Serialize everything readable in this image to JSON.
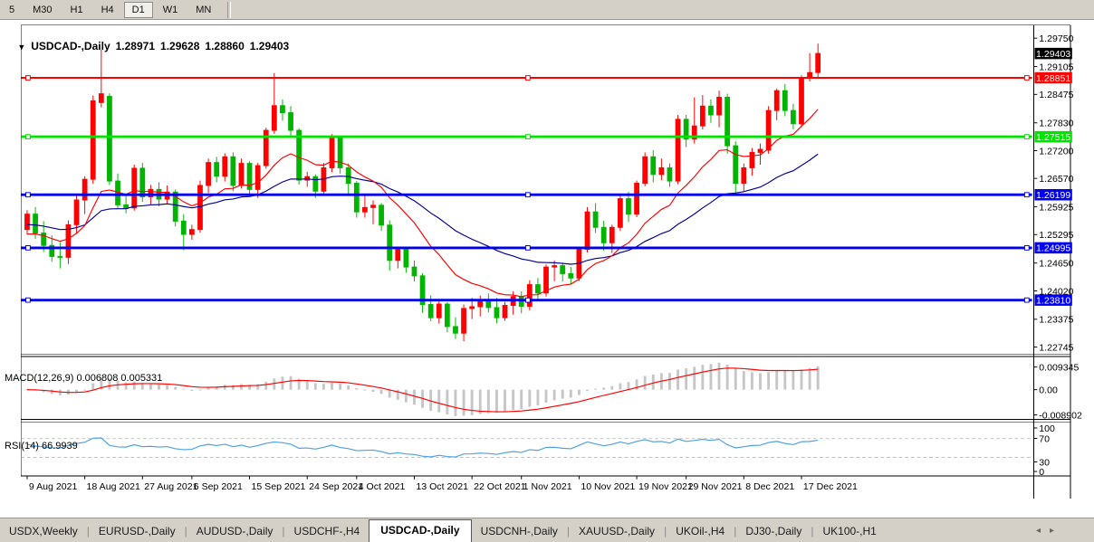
{
  "toolbar": {
    "buttons": [
      {
        "label": "5",
        "active": false
      },
      {
        "label": "M30",
        "active": false
      },
      {
        "label": "H1",
        "active": false
      },
      {
        "label": "H4",
        "active": false
      },
      {
        "label": "D1",
        "active": true
      },
      {
        "label": "W1",
        "active": false
      },
      {
        "label": "MN",
        "active": false
      }
    ]
  },
  "main_chart": {
    "symbol_arrow": "▼",
    "title": "USDCAD-,Daily",
    "open": "1.28971",
    "high": "1.29628",
    "low": "1.28860",
    "close": "1.29403"
  },
  "indicators": {
    "macd_label": "MACD(12,26,9) 0.006808 0.005331",
    "rsi_label": "RSI(14) 66.9939"
  },
  "chart_data": {
    "type": "candlestick",
    "symbol": "USDCAD-",
    "timeframe": "Daily",
    "last_bar": {
      "open": 1.28971,
      "high": 1.29628,
      "low": 1.2886,
      "close": 1.29403
    },
    "price_ticks": [
      "1.29750",
      "1.29105",
      "1.28475",
      "1.27830",
      "1.27200",
      "1.26570",
      "1.25925",
      "1.25295",
      "1.24650",
      "1.24020",
      "1.23375",
      "1.22745"
    ],
    "current_price": {
      "value": 1.29403,
      "label": "1.29403",
      "bg": "#000000",
      "fg": "#ffffff"
    },
    "hlines": [
      {
        "price": 1.28851,
        "label": "1.28851",
        "color": "#fe0000",
        "width": 2
      },
      {
        "price": 1.27515,
        "label": "1.27515",
        "color": "#00e400",
        "width": 3
      },
      {
        "price": 1.26199,
        "label": "1.26199",
        "color": "#0000ee",
        "width": 3
      },
      {
        "price": 1.24995,
        "label": "1.24995",
        "color": "#0000ee",
        "width": 3
      },
      {
        "price": 1.2381,
        "label": "1.23810",
        "color": "#0000ee",
        "width": 3
      }
    ],
    "date_labels": [
      {
        "i": 0,
        "label": "9 Aug 2021"
      },
      {
        "i": 7,
        "label": "18 Aug 2021"
      },
      {
        "i": 14,
        "label": "27 Aug 2021"
      },
      {
        "i": 20,
        "label": "6 Sep 2021"
      },
      {
        "i": 27,
        "label": "15 Sep 2021"
      },
      {
        "i": 34,
        "label": "24 Sep 2021"
      },
      {
        "i": 40,
        "label": "4 Oct 2021"
      },
      {
        "i": 47,
        "label": "13 Oct 2021"
      },
      {
        "i": 54,
        "label": "22 Oct 2021"
      },
      {
        "i": 60,
        "label": "1 Nov 2021"
      },
      {
        "i": 67,
        "label": "10 Nov 2021"
      },
      {
        "i": 74,
        "label": "19 Nov 2021"
      },
      {
        "i": 80,
        "label": "29 Nov 2021"
      },
      {
        "i": 87,
        "label": "8 Dec 2021"
      },
      {
        "i": 94,
        "label": "17 Dec 2021"
      }
    ],
    "candles": [
      [
        1.2541,
        1.2585,
        1.253,
        1.2576
      ],
      [
        1.2576,
        1.2592,
        1.252,
        1.2533
      ],
      [
        1.2533,
        1.256,
        1.249,
        1.2505
      ],
      [
        1.2505,
        1.2528,
        1.2468,
        1.248
      ],
      [
        1.248,
        1.2512,
        1.2453,
        1.2478
      ],
      [
        1.2478,
        1.2562,
        1.2463,
        1.2552
      ],
      [
        1.2552,
        1.2622,
        1.2532,
        1.2608
      ],
      [
        1.2608,
        1.2662,
        1.2576,
        1.2655
      ],
      [
        1.2655,
        1.2845,
        1.2645,
        1.2833
      ],
      [
        1.2829,
        1.2949,
        1.2818,
        1.2849
      ],
      [
        1.2843,
        1.285,
        1.2642,
        1.2651
      ],
      [
        1.2651,
        1.2668,
        1.2588,
        1.2597
      ],
      [
        1.2597,
        1.2622,
        1.2578,
        1.259
      ],
      [
        1.259,
        1.2688,
        1.2584,
        1.268
      ],
      [
        1.268,
        1.2692,
        1.2604,
        1.2615
      ],
      [
        1.2615,
        1.2642,
        1.2598,
        1.2632
      ],
      [
        1.2632,
        1.2648,
        1.2594,
        1.261
      ],
      [
        1.261,
        1.2641,
        1.2599,
        1.2626
      ],
      [
        1.2626,
        1.2632,
        1.2548,
        1.256
      ],
      [
        1.256,
        1.2576,
        1.2494,
        1.253
      ],
      [
        1.253,
        1.2552,
        1.2518,
        1.2541
      ],
      [
        1.2541,
        1.2652,
        1.2534,
        1.2641
      ],
      [
        1.2641,
        1.2702,
        1.2624,
        1.2693
      ],
      [
        1.2693,
        1.2706,
        1.2648,
        1.2662
      ],
      [
        1.2662,
        1.2714,
        1.265,
        1.2706
      ],
      [
        1.2706,
        1.2716,
        1.2628,
        1.2641
      ],
      [
        1.2641,
        1.2702,
        1.2634,
        1.2691
      ],
      [
        1.2691,
        1.2696,
        1.2618,
        1.2632
      ],
      [
        1.2632,
        1.2692,
        1.2613,
        1.2686
      ],
      [
        1.2686,
        1.2772,
        1.2679,
        1.2766
      ],
      [
        1.2766,
        1.2896,
        1.2758,
        1.2822
      ],
      [
        1.2822,
        1.2836,
        1.2788,
        1.2806
      ],
      [
        1.2806,
        1.2821,
        1.2752,
        1.2766
      ],
      [
        1.2766,
        1.2771,
        1.2643,
        1.2653
      ],
      [
        1.2653,
        1.2672,
        1.2638,
        1.2661
      ],
      [
        1.2661,
        1.2666,
        1.2613,
        1.2628
      ],
      [
        1.2628,
        1.2692,
        1.2619,
        1.2681
      ],
      [
        1.2681,
        1.2757,
        1.2671,
        1.2749
      ],
      [
        1.2749,
        1.2754,
        1.2668,
        1.2681
      ],
      [
        1.2681,
        1.2691,
        1.2618,
        1.2646
      ],
      [
        1.2646,
        1.2651,
        1.2568,
        1.2581
      ],
      [
        1.2581,
        1.2622,
        1.2568,
        1.2591
      ],
      [
        1.2591,
        1.2607,
        1.2553,
        1.2596
      ],
      [
        1.2596,
        1.2601,
        1.2538,
        1.2551
      ],
      [
        1.2551,
        1.2562,
        1.2448,
        1.2471
      ],
      [
        1.2471,
        1.2502,
        1.2453,
        1.2496
      ],
      [
        1.2496,
        1.2501,
        1.2443,
        1.2456
      ],
      [
        1.2456,
        1.2471,
        1.2423,
        1.2436
      ],
      [
        1.2436,
        1.2442,
        1.2352,
        1.2371
      ],
      [
        1.2371,
        1.2392,
        1.2333,
        1.2341
      ],
      [
        1.2341,
        1.2379,
        1.2328,
        1.2372
      ],
      [
        1.2372,
        1.2376,
        1.2308,
        1.2321
      ],
      [
        1.2321,
        1.2342,
        1.2293,
        1.2306
      ],
      [
        1.2306,
        1.2371,
        1.2288,
        1.2362
      ],
      [
        1.2362,
        1.2386,
        1.2338,
        1.2366
      ],
      [
        1.2366,
        1.2391,
        1.2344,
        1.2381
      ],
      [
        1.2381,
        1.2396,
        1.2353,
        1.2364
      ],
      [
        1.2364,
        1.2386,
        1.2328,
        1.2341
      ],
      [
        1.2341,
        1.2377,
        1.2334,
        1.2369
      ],
      [
        1.2369,
        1.2401,
        1.2348,
        1.2389
      ],
      [
        1.2389,
        1.2401,
        1.2351,
        1.2367
      ],
      [
        1.2367,
        1.2426,
        1.2358,
        1.2416
      ],
      [
        1.2416,
        1.2431,
        1.2383,
        1.2397
      ],
      [
        1.2397,
        1.2462,
        1.2389,
        1.2456
      ],
      [
        1.2456,
        1.2471,
        1.2424,
        1.2459
      ],
      [
        1.2459,
        1.2466,
        1.2423,
        1.2441
      ],
      [
        1.2441,
        1.2456,
        1.2418,
        1.2431
      ],
      [
        1.2431,
        1.2502,
        1.2424,
        1.2496
      ],
      [
        1.2496,
        1.2592,
        1.2489,
        1.2581
      ],
      [
        1.2581,
        1.2601,
        1.2533,
        1.2546
      ],
      [
        1.2546,
        1.2561,
        1.2493,
        1.2511
      ],
      [
        1.2511,
        1.2552,
        1.2488,
        1.2546
      ],
      [
        1.2546,
        1.2622,
        1.2538,
        1.2611
      ],
      [
        1.2611,
        1.2626,
        1.2558,
        1.2576
      ],
      [
        1.2576,
        1.2652,
        1.2569,
        1.2646
      ],
      [
        1.2646,
        1.2716,
        1.2639,
        1.2706
      ],
      [
        1.2706,
        1.2721,
        1.2648,
        1.2666
      ],
      [
        1.2666,
        1.2702,
        1.2653,
        1.2681
      ],
      [
        1.2681,
        1.2691,
        1.2638,
        1.2651
      ],
      [
        1.2651,
        1.2801,
        1.2644,
        1.2791
      ],
      [
        1.2791,
        1.2801,
        1.2728,
        1.2746
      ],
      [
        1.2746,
        1.2841,
        1.2736,
        1.2776
      ],
      [
        1.2776,
        1.2846,
        1.2768,
        1.2821
      ],
      [
        1.2821,
        1.2836,
        1.2783,
        1.2801
      ],
      [
        1.2801,
        1.2856,
        1.2773,
        1.2841
      ],
      [
        1.2841,
        1.2849,
        1.2713,
        1.2731
      ],
      [
        1.2731,
        1.2741,
        1.2623,
        1.2646
      ],
      [
        1.2646,
        1.2691,
        1.2628,
        1.2681
      ],
      [
        1.2681,
        1.2726,
        1.2663,
        1.2716
      ],
      [
        1.2716,
        1.2736,
        1.2688,
        1.2723
      ],
      [
        1.2721,
        1.2821,
        1.2713,
        1.2811
      ],
      [
        1.2811,
        1.2861,
        1.2789,
        1.2856
      ],
      [
        1.2856,
        1.2871,
        1.2798,
        1.2811
      ],
      [
        1.2811,
        1.2826,
        1.2768,
        1.2781
      ],
      [
        1.2781,
        1.2891,
        1.2773,
        1.2886
      ],
      [
        1.2886,
        1.2941,
        1.2877,
        1.2897
      ],
      [
        1.28971,
        1.29628,
        1.2886,
        1.29403
      ]
    ],
    "colors": {
      "bull": "#fe0000",
      "bear": "#00b400",
      "ma_fast": "#fe0000",
      "ma_slow": "#000096",
      "macd_hist": "#c6c6c6",
      "macd_signal": "#fe0000",
      "rsi": "#4da0e0",
      "rsi_levels": "#c0c0c0"
    },
    "ma_fast_period": 13,
    "ma_slow_period": 34,
    "macd": {
      "fast": 12,
      "slow": 26,
      "signal": 9,
      "current_macd": 0.006808,
      "current_signal": 0.005331,
      "axis": [
        "0.009345",
        "0.00",
        "-0.008902"
      ]
    },
    "rsi": {
      "period": 14,
      "current": 66.9939,
      "levels": [
        70,
        30
      ],
      "axis": [
        "100",
        "70",
        "30",
        "0"
      ]
    }
  },
  "tabs": {
    "items": [
      {
        "label": "USDX,Weekly",
        "active": false
      },
      {
        "label": "EURUSD-,Daily",
        "active": false
      },
      {
        "label": "AUDUSD-,Daily",
        "active": false
      },
      {
        "label": "USDCHF-,H4",
        "active": false
      },
      {
        "label": "USDCAD-,Daily",
        "active": true
      },
      {
        "label": "USDCNH-,Daily",
        "active": false
      },
      {
        "label": "XAUUSD-,Daily",
        "active": false
      },
      {
        "label": "UKOil-,H4",
        "active": false
      },
      {
        "label": "DJ30-,Daily",
        "active": false
      },
      {
        "label": "UK100-,H1",
        "active": false
      }
    ],
    "scroll_left": "◂",
    "scroll_right": "▸"
  }
}
